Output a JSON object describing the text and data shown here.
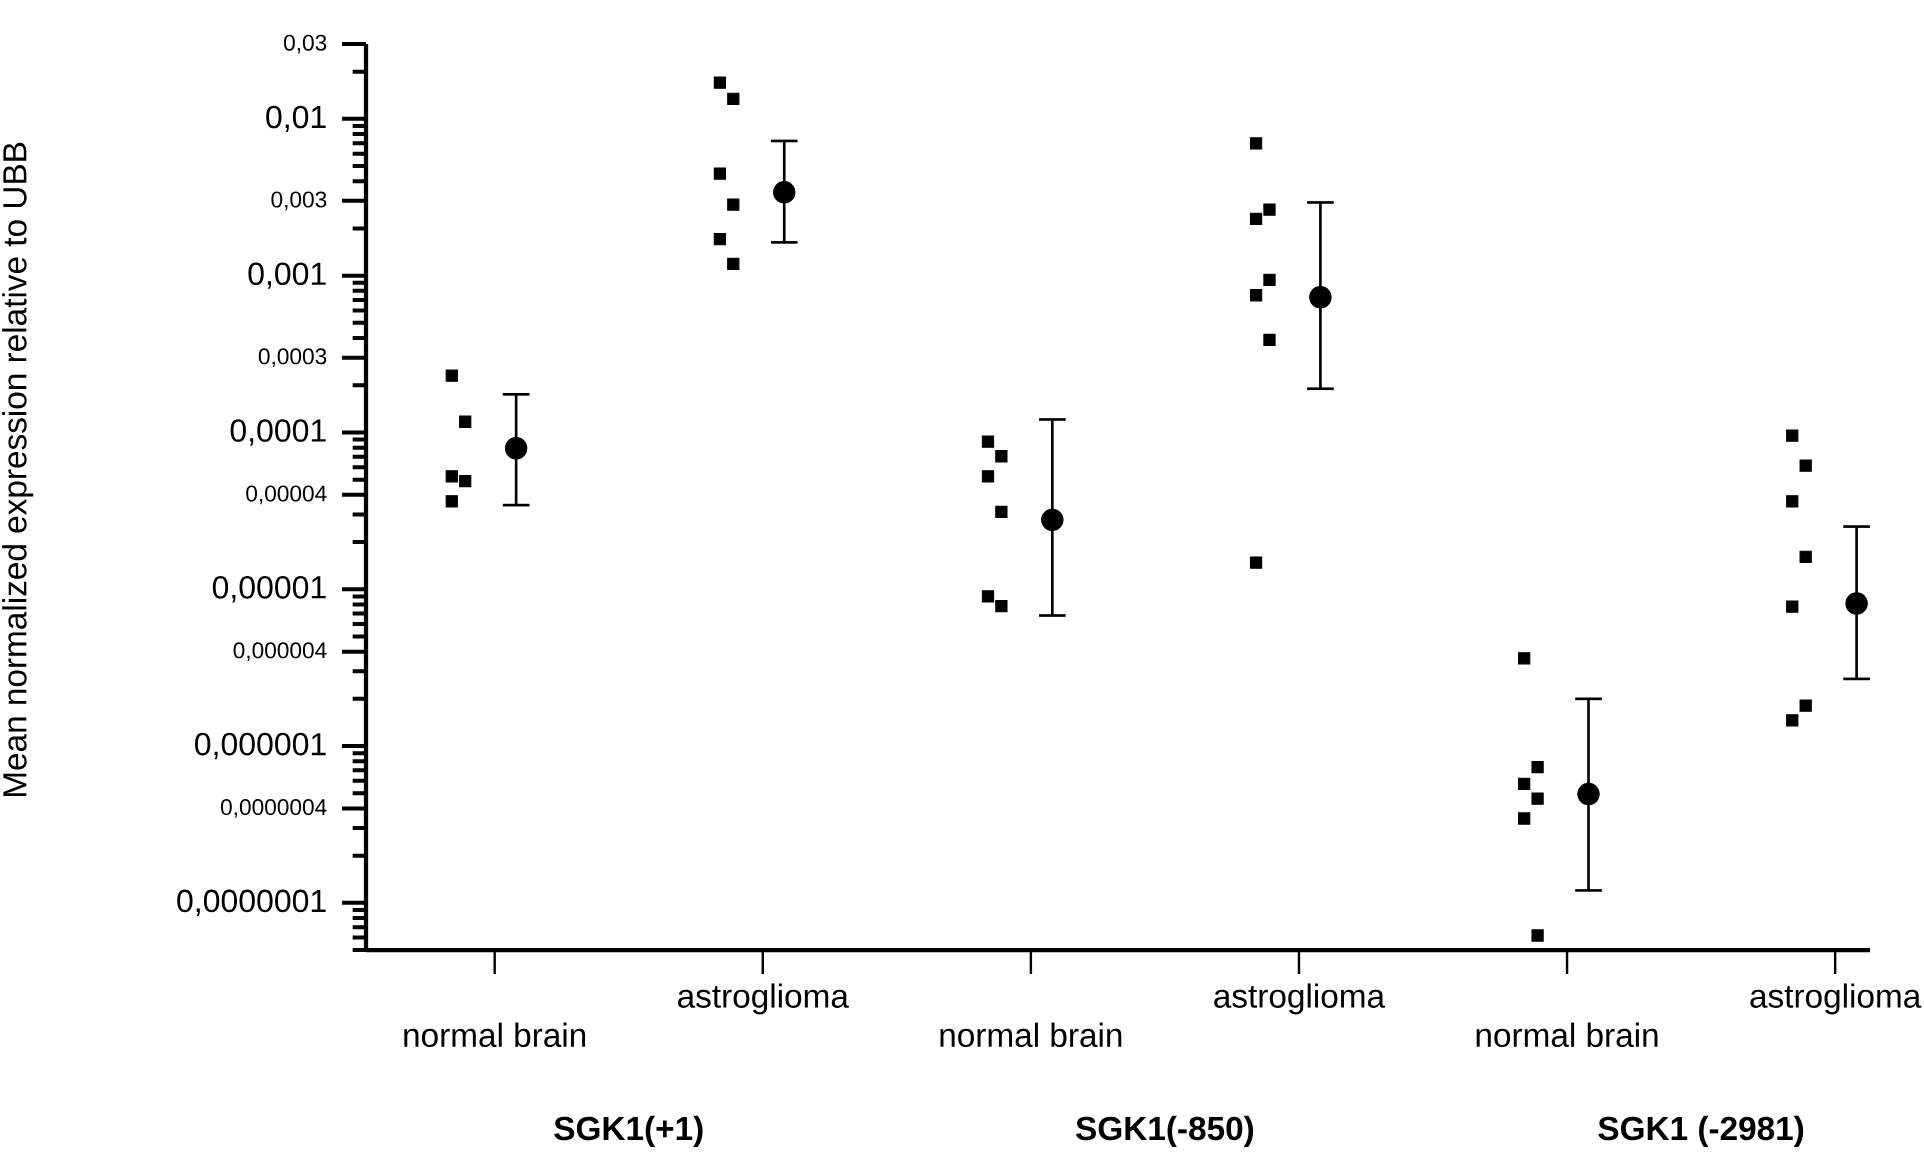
{
  "chart_data": {
    "type": "scatter",
    "ylabel": "Mean normalized expression relative to UBB",
    "categories": [
      "normal brain",
      "astroglioma",
      "normal brain",
      "astroglioma",
      "normal brain",
      "astroglioma"
    ],
    "annotations": [
      "SGK1(+1)",
      "SGK1(-850)",
      "SGK1 (-2981)"
    ],
    "log": "y",
    "ylim": [
      5e-08,
      0.03
    ],
    "yticks": [
      {
        "value": 0.03,
        "label": "0,03"
      },
      {
        "value": 0.01,
        "label": "0,01"
      },
      {
        "value": 0.003,
        "label": "0,003"
      },
      {
        "value": 0.001,
        "label": "0,001"
      },
      {
        "value": 0.0003,
        "label": "0,0003"
      },
      {
        "value": 0.0001,
        "label": "0,0001"
      },
      {
        "value": 4e-05,
        "label": "0,00004"
      },
      {
        "value": 1e-05,
        "label": "0,00001"
      },
      {
        "value": 4e-06,
        "label": "0,000004"
      },
      {
        "value": 1e-06,
        "label": "0,000001"
      },
      {
        "value": 4e-07,
        "label": "0,0000004"
      },
      {
        "value": 1e-07,
        "label": "0,0000001"
      }
    ],
    "series": [
      {
        "color": "#000000",
        "marker": "square",
        "values": [
          0.00023,
          0.017,
          8.73e-05,
          0.00697,
          3.63e-06,
          9.55e-05
        ]
      },
      {
        "color": "#000000",
        "marker": "square",
        "values": [
          0.000117,
          0.0134,
          7.05e-05,
          0.00264,
          7.35e-07,
          6.14e-05
        ]
      },
      {
        "color": "#000000",
        "marker": "square",
        "values": [
          5.25e-05,
          0.00448,
          5.25e-05,
          0.0023,
          5.74e-07,
          3.64e-05
        ]
      },
      {
        "color": "#000000",
        "marker": "square",
        "values": [
          4.89e-05,
          0.00284,
          3.12e-05,
          0.00094,
          4.62e-07,
          1.61e-05
        ]
      },
      {
        "color": "#000000",
        "marker": "square",
        "values": [
          3.64e-05,
          0.00171,
          9e-06,
          0.00075,
          3.45e-07,
          7.74e-06
        ]
      },
      {
        "color": "#000000",
        "marker": "square",
        "values": [
          null,
          0.00119,
          7.8e-06,
          0.000389,
          6.19e-08,
          1.81e-06
        ]
      },
      {
        "color": "#000000",
        "marker": "square",
        "values": [
          null,
          null,
          null,
          1.48e-05,
          null,
          1.46e-06
        ]
      },
      {
        "color": "#000000",
        "marker": "circle",
        "values": [
          7.93e-05,
          0.0034,
          2.77e-05,
          0.000728,
          4.94e-07,
          8.11e-06
        ],
        "errors": [
          [
            3.44e-05,
            0.000175
          ],
          [
            0.00163,
            0.00723
          ],
          [
            6.8e-06,
            0.000121
          ],
          [
            0.00019,
            0.00293
          ],
          [
            1.2e-07,
            2e-06
          ],
          [
            2.68e-06,
            2.51e-05
          ]
        ]
      }
    ]
  }
}
